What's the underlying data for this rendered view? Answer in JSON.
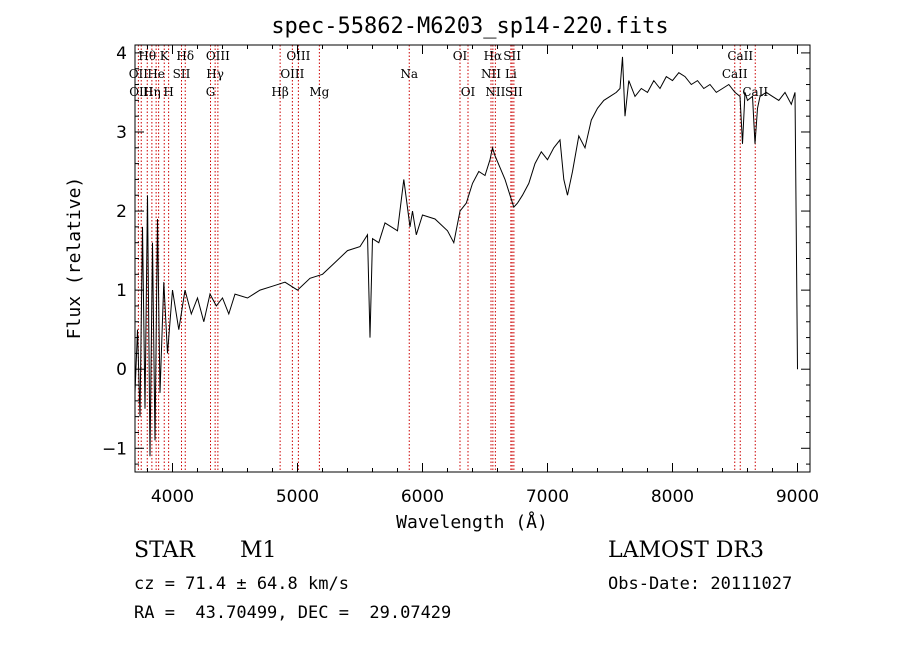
{
  "chart_data": {
    "type": "line",
    "title": "spec-55862-M6203_sp14-220.fits",
    "xlabel": "Wavelength (Å)",
    "ylabel": "Flux (relative)",
    "xlim": [
      3700,
      9100
    ],
    "ylim": [
      -1.3,
      4.1
    ],
    "x_ticks": [
      4000,
      5000,
      6000,
      7000,
      8000,
      9000
    ],
    "x_tick_labels": [
      "4000",
      "5000",
      "6000",
      "7000",
      "8000",
      "9000"
    ],
    "y_ticks": [
      -1,
      0,
      1,
      2,
      3,
      4
    ],
    "y_tick_labels": [
      "−1",
      "0",
      "1",
      "2",
      "3",
      "4"
    ],
    "line_color": "#000000",
    "series": [
      {
        "name": "flux",
        "x": [
          3700,
          3720,
          3740,
          3760,
          3780,
          3800,
          3820,
          3840,
          3860,
          3880,
          3900,
          3930,
          3960,
          4000,
          4050,
          4100,
          4150,
          4200,
          4250,
          4300,
          4350,
          4400,
          4450,
          4500,
          4600,
          4700,
          4800,
          4900,
          5000,
          5100,
          5200,
          5300,
          5400,
          5500,
          5560,
          5580,
          5600,
          5650,
          5700,
          5800,
          5850,
          5900,
          5920,
          5950,
          6000,
          6100,
          6200,
          6250,
          6300,
          6350,
          6400,
          6450,
          6500,
          6540,
          6560,
          6580,
          6620,
          6660,
          6700,
          6730,
          6760,
          6800,
          6850,
          6900,
          6950,
          7000,
          7050,
          7100,
          7130,
          7160,
          7200,
          7250,
          7300,
          7350,
          7400,
          7450,
          7500,
          7550,
          7580,
          7600,
          7620,
          7650,
          7700,
          7750,
          7800,
          7850,
          7900,
          7950,
          8000,
          8050,
          8100,
          8150,
          8200,
          8250,
          8300,
          8350,
          8400,
          8450,
          8500,
          8540,
          8560,
          8580,
          8600,
          8640,
          8660,
          8680,
          8700,
          8750,
          8800,
          8850,
          8900,
          8950,
          8980,
          9000
        ],
        "y": [
          -0.3,
          0.5,
          -0.6,
          1.8,
          -0.5,
          2.2,
          -1.1,
          1.6,
          -0.9,
          1.9,
          -0.3,
          1.1,
          0.2,
          1.0,
          0.5,
          1.0,
          0.7,
          0.9,
          0.6,
          0.95,
          0.8,
          0.9,
          0.7,
          0.95,
          0.9,
          1.0,
          1.05,
          1.1,
          1.0,
          1.15,
          1.2,
          1.35,
          1.5,
          1.55,
          1.7,
          0.4,
          1.65,
          1.6,
          1.85,
          1.75,
          2.4,
          1.8,
          2.0,
          1.7,
          1.95,
          1.9,
          1.75,
          1.6,
          2.0,
          2.1,
          2.35,
          2.5,
          2.45,
          2.65,
          2.8,
          2.7,
          2.55,
          2.4,
          2.2,
          2.05,
          2.1,
          2.2,
          2.35,
          2.6,
          2.75,
          2.65,
          2.8,
          2.9,
          2.4,
          2.2,
          2.5,
          2.95,
          2.8,
          3.15,
          3.3,
          3.4,
          3.45,
          3.5,
          3.55,
          3.95,
          3.2,
          3.65,
          3.45,
          3.55,
          3.5,
          3.65,
          3.55,
          3.7,
          3.65,
          3.75,
          3.7,
          3.6,
          3.65,
          3.55,
          3.6,
          3.5,
          3.55,
          3.6,
          3.5,
          3.45,
          2.85,
          3.5,
          3.4,
          3.45,
          2.85,
          3.3,
          3.45,
          3.5,
          3.45,
          3.4,
          3.5,
          3.35,
          3.5,
          0.0
        ]
      }
    ],
    "line_markers": [
      {
        "wavelength": 3727,
        "label": "OII",
        "row": 1
      },
      {
        "wavelength": 3750,
        "label": "OIII",
        "row": 2
      },
      {
        "wavelength": 3798,
        "label": "Hθ",
        "row": 0
      },
      {
        "wavelength": 3835,
        "label": "Hη",
        "row": 2
      },
      {
        "wavelength": 3869,
        "label": "He",
        "row": 1
      },
      {
        "wavelength": 3889,
        "label": "",
        "row": 0
      },
      {
        "wavelength": 3934,
        "label": "K",
        "row": 0
      },
      {
        "wavelength": 3969,
        "label": "H",
        "row": 2
      },
      {
        "wavelength": 4072,
        "label": "SII",
        "row": 1
      },
      {
        "wavelength": 4102,
        "label": "Hδ",
        "row": 0
      },
      {
        "wavelength": 4304,
        "label": "G",
        "row": 2
      },
      {
        "wavelength": 4341,
        "label": "Hγ",
        "row": 1
      },
      {
        "wavelength": 4363,
        "label": "OIII",
        "row": 0
      },
      {
        "wavelength": 4861,
        "label": "Hβ",
        "row": 2
      },
      {
        "wavelength": 4959,
        "label": "OIII",
        "row": 1
      },
      {
        "wavelength": 5007,
        "label": "OIII",
        "row": 0
      },
      {
        "wavelength": 5175,
        "label": "Mg",
        "row": 2
      },
      {
        "wavelength": 5894,
        "label": "Na",
        "row": 1
      },
      {
        "wavelength": 6300,
        "label": "OI",
        "row": 0
      },
      {
        "wavelength": 6364,
        "label": "OI",
        "row": 2
      },
      {
        "wavelength": 6548,
        "label": "NII",
        "row": 1
      },
      {
        "wavelength": 6563,
        "label": "Hα",
        "row": 0
      },
      {
        "wavelength": 6583,
        "label": "NII",
        "row": 2
      },
      {
        "wavelength": 6707,
        "label": "Li",
        "row": 1
      },
      {
        "wavelength": 6717,
        "label": "SII",
        "row": 0
      },
      {
        "wavelength": 6731,
        "label": "SII",
        "row": 2
      },
      {
        "wavelength": 8498,
        "label": "CaII",
        "row": 1
      },
      {
        "wavelength": 8542,
        "label": "CaII",
        "row": 0
      },
      {
        "wavelength": 8662,
        "label": "CaII",
        "row": 2
      }
    ],
    "marker_color": "#cc0000"
  },
  "footer": {
    "object_class": "STAR",
    "subclass": "M1",
    "survey": "LAMOST DR3",
    "cz": "cz = 71.4 ± 64.8 km/s",
    "obs_date": "Obs-Date: 20111027",
    "radec": "RA =  43.70499, DEC =  29.07429"
  }
}
